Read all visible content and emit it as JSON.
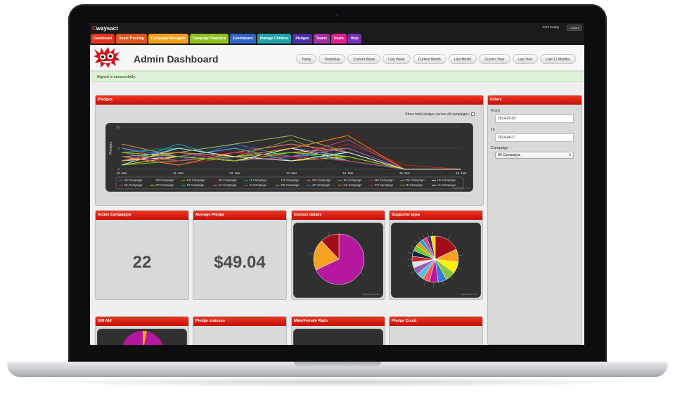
{
  "app": {
    "logo_mark": "C",
    "logo_text": "waysact",
    "user_name": "Carli Koepp",
    "logout_label": "Logout"
  },
  "nav": [
    {
      "label": "Dashboard",
      "color": "#e8321f"
    },
    {
      "label": "Asset Tracking",
      "color": "#e0561f"
    },
    {
      "label": "Campaign Managers",
      "color": "#f0a01a"
    },
    {
      "label": "Campaign Statistics",
      "color": "#8fbf1f"
    },
    {
      "label": "Fundraisers",
      "color": "#2f63c9"
    },
    {
      "label": "Manage Children",
      "color": "#1fa3a8"
    },
    {
      "label": "Pledges",
      "color": "#4b2fa3"
    },
    {
      "label": "Teams",
      "color": "#a32fa3"
    },
    {
      "label": "Users",
      "color": "#e21f8f"
    },
    {
      "label": "Help",
      "color": "#7a2fb8"
    }
  ],
  "header": {
    "title": "Admin Dashboard",
    "ranges": [
      "Today",
      "Yesterday",
      "Current Week",
      "Last Week",
      "Current Month",
      "Last Month",
      "Current Year",
      "Last Year",
      "Last 12 Months"
    ]
  },
  "flash": "Signed in successfully.",
  "pledges_panel": {
    "title": "Pledges",
    "show_total_label": "Show total pledges across all campaigns:",
    "credit": "Highcharts.com"
  },
  "filters": {
    "title": "Filters",
    "from_label": "From",
    "from_value": "2014-03-03",
    "to_label": "To",
    "to_value": "2014-04-17",
    "campaign_label": "Campaign",
    "campaign_value": "All Campaigns"
  },
  "cards": {
    "active_campaigns": {
      "title": "Active Campaigns",
      "value": "22"
    },
    "average_pledge": {
      "title": "Average Pledge",
      "value": "$49.04"
    },
    "contact_details": {
      "title": "Contact details",
      "credit": "Highcharts.com"
    },
    "supporter_ages": {
      "title": "Supporter ages",
      "credit": "Highcharts.com"
    },
    "gift_aid": {
      "title": "Gift Aid"
    },
    "pledge_statuses": {
      "title": "Pledge statuses"
    },
    "male_female": {
      "title": "Male/Female Ratio"
    },
    "pledge_count": {
      "title": "Pledge Count"
    }
  },
  "chart_data": [
    {
      "type": "line",
      "ylabel": "Pledges",
      "ylim": [
        0,
        10
      ],
      "yticks": [
        "10",
        "5",
        "0"
      ],
      "x": [
        "10. Mar",
        "11. Mar",
        "12. Mar",
        "13. Mar",
        "14. Mar",
        "15. Mar",
        "16. Mar"
      ],
      "series": [
        {
          "name": "ZA Campaign",
          "color": "#2f7ed8",
          "values": [
            4,
            2,
            6,
            3,
            5,
            0,
            0
          ]
        },
        {
          "name": "NZ Campaign",
          "color": "#0d233a",
          "values": [
            3,
            5,
            2,
            4,
            1,
            0,
            0
          ]
        },
        {
          "name": "ES Campaign",
          "color": "#8bbc21",
          "values": [
            2,
            4,
            3,
            7,
            2,
            0,
            0
          ]
        },
        {
          "name": "AR Campaign",
          "color": "#910000",
          "values": [
            5,
            3,
            4,
            2,
            9,
            0,
            0
          ]
        },
        {
          "name": "IT Campaign",
          "color": "#1aadce",
          "values": [
            1,
            6,
            2,
            3,
            4,
            0,
            0
          ]
        },
        {
          "name": "TH Campaign",
          "color": "#492970",
          "values": [
            3,
            2,
            5,
            6,
            3,
            0,
            0
          ]
        },
        {
          "name": "GB Campaign",
          "color": "#f28f43",
          "values": [
            6,
            3,
            2,
            4,
            5,
            0,
            0
          ]
        },
        {
          "name": "SE Campaign",
          "color": "#77a1e5",
          "values": [
            2,
            5,
            3,
            5,
            3,
            0,
            0
          ]
        },
        {
          "name": "MX Campaign",
          "color": "#c42525",
          "values": [
            4,
            1,
            3,
            2,
            6,
            1,
            0
          ]
        },
        {
          "name": "DK Campaign",
          "color": "#a6c96a",
          "values": [
            3,
            4,
            6,
            8,
            4,
            0,
            0
          ]
        },
        {
          "name": "HK Campaign",
          "color": "#ffffff",
          "values": [
            2,
            3,
            2,
            5,
            2,
            0,
            0
          ]
        },
        {
          "name": "NL Campaign",
          "color": "#e83e8c",
          "values": [
            5,
            2,
            4,
            3,
            7,
            0,
            0
          ]
        },
        {
          "name": "FR Campaign",
          "color": "#ffd700",
          "values": [
            1,
            3,
            5,
            2,
            3,
            0,
            0
          ]
        },
        {
          "name": "ID Campaign",
          "color": "#00c0a0",
          "values": [
            4,
            5,
            3,
            4,
            2,
            0,
            0
          ]
        },
        {
          "name": "CA Campaign",
          "color": "#ff7f50",
          "values": [
            3,
            1,
            4,
            6,
            4,
            0,
            0
          ]
        },
        {
          "name": "FI Campaign",
          "color": "#9b59b6",
          "values": [
            2,
            4,
            2,
            3,
            5,
            0,
            0
          ]
        },
        {
          "name": "DE Campaign",
          "color": "#66cc33",
          "values": [
            1,
            2,
            3,
            4,
            3,
            0,
            0
          ]
        },
        {
          "name": "AT Campaign",
          "color": "#3399ff",
          "values": [
            5,
            3,
            5,
            2,
            4,
            0,
            0
          ]
        },
        {
          "name": "US Campaign",
          "color": "#ff9900",
          "values": [
            2,
            4,
            3,
            5,
            8,
            0,
            0
          ]
        },
        {
          "name": "PH Campaign",
          "color": "#cc3366",
          "values": [
            3,
            2,
            4,
            3,
            2,
            0,
            0
          ]
        },
        {
          "name": "IE Campaign",
          "color": "#99cc00",
          "values": [
            4,
            3,
            2,
            4,
            3,
            0,
            0
          ]
        },
        {
          "name": "AU Campaign",
          "color": "#f5f5dc",
          "values": [
            1,
            5,
            3,
            2,
            4,
            0,
            0
          ]
        }
      ]
    },
    {
      "type": "pie",
      "slices": [
        {
          "value": 68,
          "color": "#b5179e"
        },
        {
          "value": 20,
          "color": "#f7a122"
        },
        {
          "value": 12,
          "color": "#a30d1a"
        }
      ]
    },
    {
      "type": "pie",
      "slices": [
        {
          "value": 18,
          "color": "#a30d1a"
        },
        {
          "value": 9,
          "color": "#f7a122"
        },
        {
          "value": 8,
          "color": "#fff200"
        },
        {
          "value": 7,
          "color": "#8bc53f"
        },
        {
          "value": 6,
          "color": "#2f7ed8"
        },
        {
          "value": 6,
          "color": "#b5179e"
        },
        {
          "value": 5,
          "color": "#ff5c5c"
        },
        {
          "value": 5,
          "color": "#5bc0de"
        },
        {
          "value": 5,
          "color": "#9b59b6"
        },
        {
          "value": 4,
          "color": "#e0e0e0"
        },
        {
          "value": 4,
          "color": "#c42525"
        },
        {
          "value": 4,
          "color": "#0d233a"
        },
        {
          "value": 4,
          "color": "#66cc33"
        },
        {
          "value": 3,
          "color": "#ff9900"
        },
        {
          "value": 3,
          "color": "#1aadce"
        },
        {
          "value": 3,
          "color": "#e83e8c"
        },
        {
          "value": 3,
          "color": "#492970"
        },
        {
          "value": 3,
          "color": "#ffd700"
        }
      ]
    }
  ]
}
